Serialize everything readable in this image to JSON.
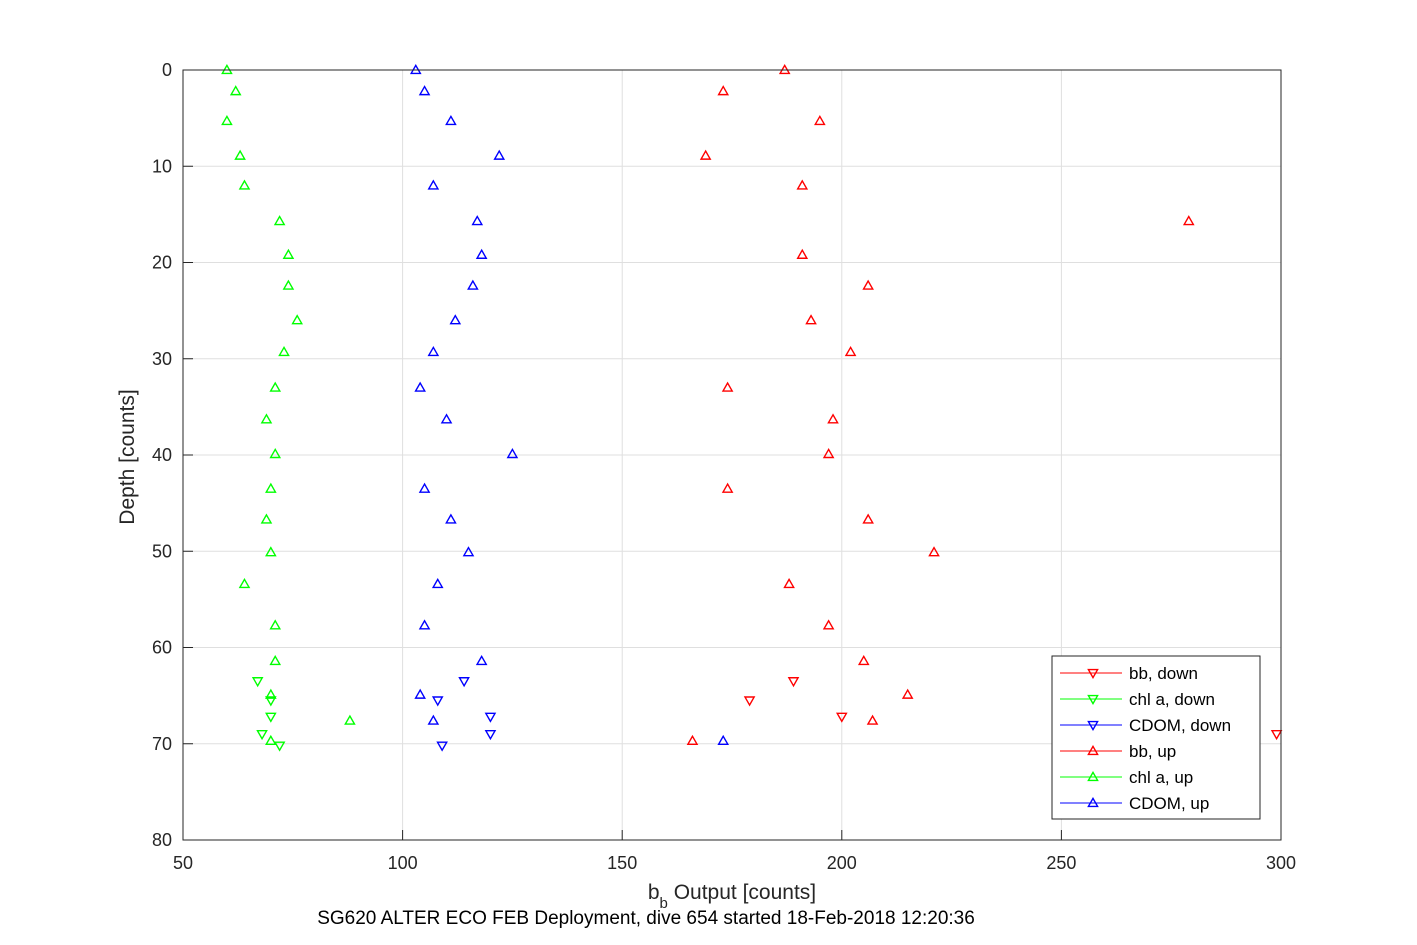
{
  "chart_data": {
    "type": "scatter",
    "xlabel_main": "b",
    "xlabel_sub": "b",
    "xlabel_rest": " Output [counts]",
    "ylabel": "Depth [counts]",
    "caption": "SG620 ALTER ECO FEB Deployment, dive 654 started 18-Feb-2018 12:20:36",
    "xlim": [
      50,
      300
    ],
    "ylim": [
      0,
      80
    ],
    "y_reversed": true,
    "grid": true,
    "xticks": [
      "50",
      "100",
      "150",
      "200",
      "250",
      "300"
    ],
    "yticks": [
      "0",
      "10",
      "20",
      "30",
      "40",
      "50",
      "60",
      "70",
      "80"
    ],
    "legend_position": "bottom-right",
    "series": [
      {
        "name": "bb, down",
        "color": "#ff0000",
        "marker": "triangle-down",
        "points": [
          [
            189,
            63.5
          ],
          [
            179,
            65.5
          ],
          [
            200,
            67.2
          ],
          [
            299,
            69
          ]
        ]
      },
      {
        "name": "chl a, down",
        "color": "#00ff00",
        "marker": "triangle-down",
        "points": [
          [
            67,
            63.5
          ],
          [
            70,
            65.5
          ],
          [
            70,
            67.2
          ],
          [
            68,
            69
          ],
          [
            72,
            70.2
          ]
        ]
      },
      {
        "name": "CDOM, down",
        "color": "#0000ff",
        "marker": "triangle-down",
        "points": [
          [
            114,
            63.5
          ],
          [
            108,
            65.5
          ],
          [
            120,
            67.2
          ],
          [
            120,
            69
          ],
          [
            109,
            70.2
          ]
        ]
      },
      {
        "name": "bb, up",
        "color": "#ff0000",
        "marker": "triangle-up",
        "points": [
          [
            187,
            0
          ],
          [
            173,
            2.2
          ],
          [
            195,
            5.3
          ],
          [
            169,
            8.9
          ],
          [
            191,
            12
          ],
          [
            279,
            15.7
          ],
          [
            191,
            19.2
          ],
          [
            206,
            22.4
          ],
          [
            193,
            26
          ],
          [
            202,
            29.3
          ],
          [
            174,
            33
          ],
          [
            198,
            36.3
          ],
          [
            197,
            39.9
          ],
          [
            174,
            43.5
          ],
          [
            206,
            46.7
          ],
          [
            221,
            50.1
          ],
          [
            188,
            53.4
          ],
          [
            197,
            57.7
          ],
          [
            205,
            61.4
          ],
          [
            215,
            64.9
          ],
          [
            207,
            67.6
          ],
          [
            166,
            69.7
          ]
        ]
      },
      {
        "name": "chl a, up",
        "color": "#00ff00",
        "marker": "triangle-up",
        "points": [
          [
            60,
            0
          ],
          [
            62,
            2.2
          ],
          [
            60,
            5.3
          ],
          [
            63,
            8.9
          ],
          [
            64,
            12
          ],
          [
            72,
            15.7
          ],
          [
            74,
            19.2
          ],
          [
            74,
            22.4
          ],
          [
            76,
            26
          ],
          [
            73,
            29.3
          ],
          [
            71,
            33
          ],
          [
            69,
            36.3
          ],
          [
            71,
            39.9
          ],
          [
            70,
            43.5
          ],
          [
            69,
            46.7
          ],
          [
            70,
            50.1
          ],
          [
            64,
            53.4
          ],
          [
            71,
            57.7
          ],
          [
            71,
            61.4
          ],
          [
            70,
            64.9
          ],
          [
            88,
            67.6
          ],
          [
            70,
            69.7
          ]
        ]
      },
      {
        "name": "CDOM, up",
        "color": "#0000ff",
        "marker": "triangle-up",
        "points": [
          [
            103,
            0
          ],
          [
            105,
            2.2
          ],
          [
            111,
            5.3
          ],
          [
            122,
            8.9
          ],
          [
            107,
            12
          ],
          [
            117,
            15.7
          ],
          [
            118,
            19.2
          ],
          [
            116,
            22.4
          ],
          [
            112,
            26
          ],
          [
            107,
            29.3
          ],
          [
            104,
            33
          ],
          [
            110,
            36.3
          ],
          [
            125,
            39.9
          ],
          [
            105,
            43.5
          ],
          [
            111,
            46.7
          ],
          [
            115,
            50.1
          ],
          [
            108,
            53.4
          ],
          [
            105,
            57.7
          ],
          [
            118,
            61.4
          ],
          [
            104,
            64.9
          ],
          [
            107,
            67.6
          ],
          [
            173,
            69.7
          ]
        ]
      }
    ]
  }
}
